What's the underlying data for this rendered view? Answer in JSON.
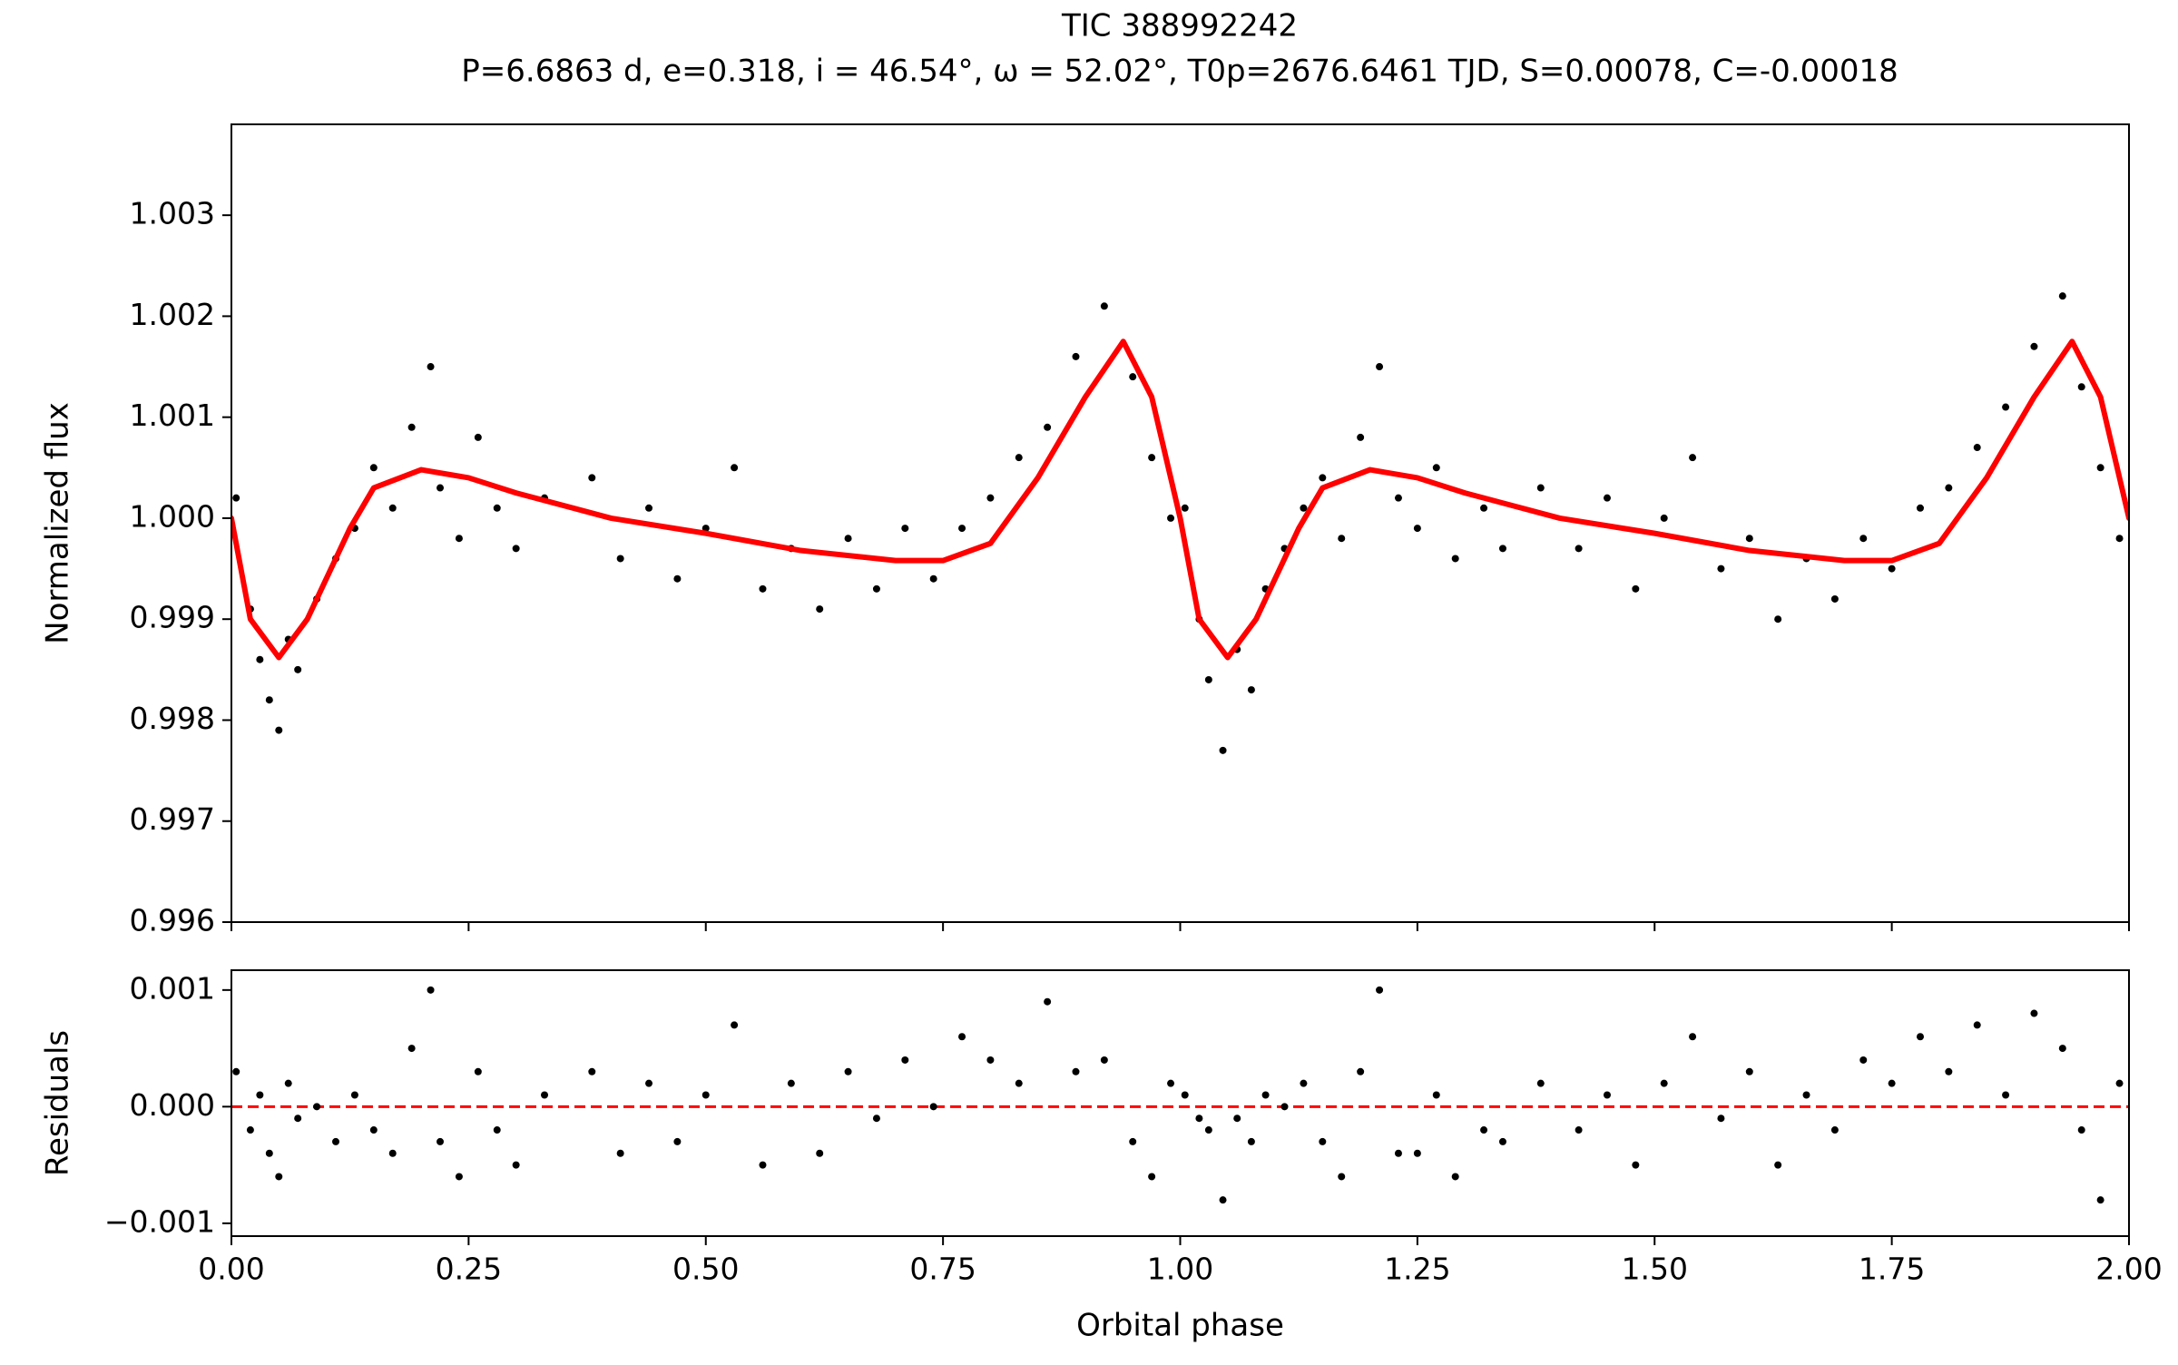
{
  "chart_data": [
    {
      "type": "scatter",
      "title": "TIC 388992242",
      "subtitle": "P=6.6863 d, e=0.318, i = 46.54°, ω = 52.02°, T0p=2676.6461 TJD, S=0.00078, C=-0.00018",
      "ylabel": "Normalized flux",
      "xlim": [
        0,
        2
      ],
      "xticks": [
        0,
        0.25,
        0.5,
        0.75,
        1,
        1.25,
        1.5,
        1.75,
        2
      ],
      "ylim": [
        0.996,
        1.0039
      ],
      "yticks": [
        0.996,
        0.997,
        0.998,
        0.999,
        {
          "value": 1.0,
          "label": "1.000"
        },
        1.001,
        1.002,
        1.003
      ],
      "series": [
        {
          "kind": "points",
          "color": "#000000",
          "x": [
            0.005,
            0.02,
            0.03,
            0.04,
            0.05,
            0.06,
            0.07,
            0.09,
            0.11,
            0.13,
            0.15,
            0.17,
            0.19,
            0.21,
            0.22,
            0.24,
            0.26,
            0.28,
            0.3,
            0.33,
            0.38,
            0.41,
            0.44,
            0.47,
            0.5,
            0.53,
            0.56,
            0.59,
            0.62,
            0.65,
            0.68,
            0.71,
            0.74,
            0.77,
            0.8,
            0.83,
            0.86,
            0.89,
            0.92,
            0.95,
            0.97,
            0.99,
            1.005,
            1.02,
            1.03,
            1.045,
            1.06,
            1.075,
            1.09,
            1.11,
            1.13,
            1.15,
            1.17,
            1.19,
            1.21,
            1.23,
            1.25,
            1.27,
            1.29,
            1.32,
            1.34,
            1.38,
            1.42,
            1.45,
            1.48,
            1.51,
            1.54,
            1.57,
            1.6,
            1.63,
            1.66,
            1.69,
            1.72,
            1.75,
            1.78,
            1.81,
            1.84,
            1.87,
            1.9,
            1.93,
            1.95,
            1.97,
            1.99
          ],
          "values": [
            1.0002,
            0.9991,
            0.9986,
            0.9982,
            0.9979,
            0.9988,
            0.9985,
            0.9992,
            0.9996,
            0.9999,
            1.0005,
            1.0001,
            1.0009,
            1.0015,
            1.0003,
            0.9998,
            1.0008,
            1.0001,
            0.9997,
            1.0002,
            1.0004,
            0.9996,
            1.0001,
            0.9994,
            0.9999,
            1.0005,
            0.9993,
            0.9997,
            0.9991,
            0.9998,
            0.9993,
            0.9999,
            0.9994,
            0.9999,
            1.0002,
            1.0006,
            1.0009,
            1.0016,
            1.0021,
            1.0014,
            1.0006,
            1.0,
            1.0001,
            0.999,
            0.9984,
            0.9977,
            0.9987,
            0.9983,
            0.9993,
            0.9997,
            1.0001,
            1.0004,
            0.9998,
            1.0008,
            1.0015,
            1.0002,
            0.9999,
            1.0005,
            0.9996,
            1.0001,
            0.9997,
            1.0003,
            0.9997,
            1.0002,
            0.9993,
            1.0,
            1.0006,
            0.9995,
            0.9998,
            0.999,
            0.9996,
            0.9992,
            0.9998,
            0.9995,
            1.0001,
            1.0003,
            1.0007,
            1.0011,
            1.0017,
            1.0022,
            1.0013,
            1.0005,
            0.9998
          ]
        },
        {
          "kind": "line",
          "color": "#ff0000",
          "x": [
            0,
            0.02,
            0.05,
            0.08,
            0.1,
            0.125,
            0.15,
            0.2,
            0.25,
            0.3,
            0.4,
            0.5,
            0.6,
            0.7,
            0.75,
            0.8,
            0.85,
            0.9,
            0.94,
            0.97,
            1,
            1.02,
            1.05,
            1.08,
            1.1,
            1.125,
            1.15,
            1.2,
            1.25,
            1.3,
            1.4,
            1.5,
            1.6,
            1.7,
            1.75,
            1.8,
            1.85,
            1.9,
            1.94,
            1.97,
            2
          ],
          "values": [
            1.0,
            0.999,
            0.99862,
            0.999,
            0.9994,
            0.9999,
            1.0003,
            1.00048,
            1.0004,
            1.00025,
            1.0,
            0.99985,
            0.99968,
            0.99958,
            0.99958,
            0.99975,
            1.0004,
            1.0012,
            1.00175,
            1.0012,
            1.0,
            0.999,
            0.99862,
            0.999,
            0.9994,
            0.9999,
            1.0003,
            1.00048,
            1.0004,
            1.00025,
            1.0,
            0.99985,
            0.99968,
            0.99958,
            0.99958,
            0.99975,
            1.0004,
            1.0012,
            1.00175,
            1.0012,
            1.0
          ]
        }
      ]
    },
    {
      "type": "scatter",
      "ylabel": "Residuals",
      "xlabel": "Orbital phase",
      "xlim": [
        0,
        2
      ],
      "xticks": [
        {
          "value": 0,
          "label": "0.00"
        },
        {
          "value": 0.25,
          "label": "0.25"
        },
        {
          "value": 0.5,
          "label": "0.50"
        },
        {
          "value": 0.75,
          "label": "0.75"
        },
        {
          "value": 1,
          "label": "1.00"
        },
        {
          "value": 1.25,
          "label": "1.25"
        },
        {
          "value": 1.5,
          "label": "1.50"
        },
        {
          "value": 1.75,
          "label": "1.75"
        },
        {
          "value": 2,
          "label": "2.00"
        }
      ],
      "ylim": [
        -0.00111,
        0.00117
      ],
      "yticks": [
        {
          "value": -0.001,
          "label": "−0.001"
        },
        {
          "value": 0,
          "label": "0.000"
        },
        0.001
      ],
      "hline": 0,
      "hline_color": "#ff0000",
      "series": [
        {
          "kind": "points",
          "color": "#000000",
          "x": [
            0.005,
            0.02,
            0.03,
            0.04,
            0.05,
            0.06,
            0.07,
            0.09,
            0.11,
            0.13,
            0.15,
            0.17,
            0.19,
            0.21,
            0.22,
            0.24,
            0.26,
            0.28,
            0.3,
            0.33,
            0.38,
            0.41,
            0.44,
            0.47,
            0.5,
            0.53,
            0.56,
            0.59,
            0.62,
            0.65,
            0.68,
            0.71,
            0.74,
            0.77,
            0.8,
            0.83,
            0.86,
            0.89,
            0.92,
            0.95,
            0.97,
            0.99,
            1.005,
            1.02,
            1.03,
            1.045,
            1.06,
            1.075,
            1.09,
            1.11,
            1.13,
            1.15,
            1.17,
            1.19,
            1.21,
            1.23,
            1.25,
            1.27,
            1.29,
            1.32,
            1.34,
            1.38,
            1.42,
            1.45,
            1.48,
            1.51,
            1.54,
            1.57,
            1.6,
            1.63,
            1.66,
            1.69,
            1.72,
            1.75,
            1.78,
            1.81,
            1.84,
            1.87,
            1.9,
            1.93,
            1.95,
            1.97,
            1.99
          ],
          "values": [
            0.0003,
            -0.0002,
            0.0001,
            -0.0004,
            -0.0006,
            0.0002,
            -0.0001,
            0.0,
            -0.0003,
            0.0001,
            -0.0002,
            -0.0004,
            0.0005,
            0.001,
            -0.0003,
            -0.0006,
            0.0003,
            -0.0002,
            -0.0005,
            0.0001,
            0.0003,
            -0.0004,
            0.0002,
            -0.0003,
            0.0001,
            0.0007,
            -0.0005,
            0.0002,
            -0.0004,
            0.0003,
            -0.0001,
            0.0004,
            0.0,
            0.0006,
            0.0004,
            0.0002,
            0.0009,
            0.0003,
            0.0004,
            -0.0003,
            -0.0006,
            0.0002,
            0.0001,
            -0.0001,
            -0.0002,
            -0.0008,
            -0.0001,
            -0.0003,
            0.0001,
            0.0,
            0.0002,
            -0.0003,
            -0.0006,
            0.0003,
            0.001,
            -0.0004,
            -0.0004,
            0.0001,
            -0.0006,
            -0.0002,
            -0.0003,
            0.0002,
            -0.0002,
            0.0001,
            -0.0005,
            0.0002,
            0.0006,
            -0.0001,
            0.0003,
            -0.0005,
            0.0001,
            -0.0002,
            0.0004,
            0.0002,
            0.0006,
            0.0003,
            0.0007,
            0.0001,
            0.0008,
            0.0005,
            -0.0002,
            -0.0008,
            0.0002
          ]
        }
      ]
    }
  ]
}
